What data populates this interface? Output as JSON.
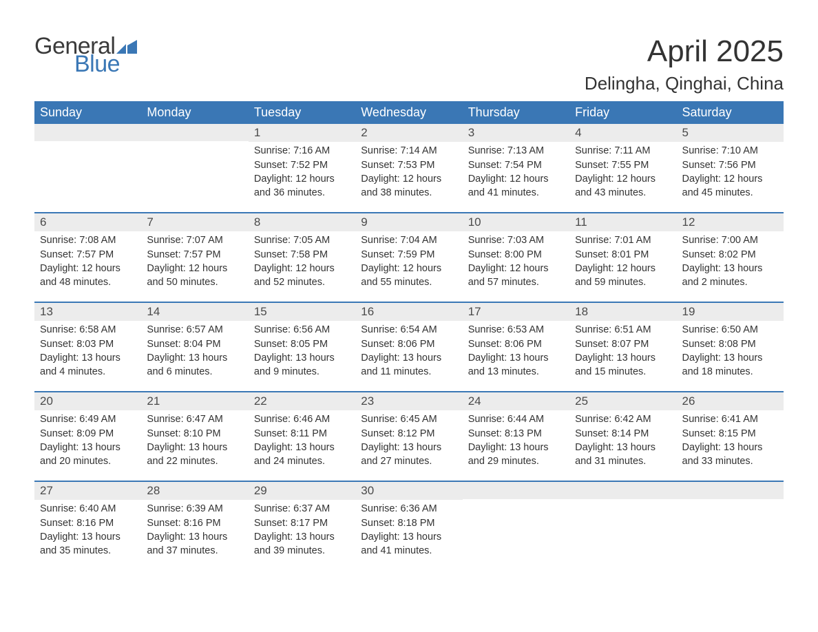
{
  "brand": {
    "word1": "General",
    "word2": "Blue",
    "flag_color": "#3a77b5",
    "text_gray": "#3a3a3a"
  },
  "title": "April 2025",
  "location": "Delingha, Qinghai, China",
  "colors": {
    "header_bg": "#3a77b5",
    "header_text": "#ffffff",
    "daynum_bg": "#ececec",
    "body_text": "#333333",
    "week_border": "#3a77b5",
    "page_bg": "#ffffff"
  },
  "fonts": {
    "title_size": 44,
    "location_size": 26,
    "dow_size": 18,
    "daynum_size": 17,
    "body_size": 14.5
  },
  "days_of_week": [
    "Sunday",
    "Monday",
    "Tuesday",
    "Wednesday",
    "Thursday",
    "Friday",
    "Saturday"
  ],
  "weeks": [
    [
      {
        "n": "",
        "sunrise": "",
        "sunset": "",
        "daylight": ""
      },
      {
        "n": "",
        "sunrise": "",
        "sunset": "",
        "daylight": ""
      },
      {
        "n": "1",
        "sunrise": "Sunrise: 7:16 AM",
        "sunset": "Sunset: 7:52 PM",
        "daylight": "Daylight: 12 hours and 36 minutes."
      },
      {
        "n": "2",
        "sunrise": "Sunrise: 7:14 AM",
        "sunset": "Sunset: 7:53 PM",
        "daylight": "Daylight: 12 hours and 38 minutes."
      },
      {
        "n": "3",
        "sunrise": "Sunrise: 7:13 AM",
        "sunset": "Sunset: 7:54 PM",
        "daylight": "Daylight: 12 hours and 41 minutes."
      },
      {
        "n": "4",
        "sunrise": "Sunrise: 7:11 AM",
        "sunset": "Sunset: 7:55 PM",
        "daylight": "Daylight: 12 hours and 43 minutes."
      },
      {
        "n": "5",
        "sunrise": "Sunrise: 7:10 AM",
        "sunset": "Sunset: 7:56 PM",
        "daylight": "Daylight: 12 hours and 45 minutes."
      }
    ],
    [
      {
        "n": "6",
        "sunrise": "Sunrise: 7:08 AM",
        "sunset": "Sunset: 7:57 PM",
        "daylight": "Daylight: 12 hours and 48 minutes."
      },
      {
        "n": "7",
        "sunrise": "Sunrise: 7:07 AM",
        "sunset": "Sunset: 7:57 PM",
        "daylight": "Daylight: 12 hours and 50 minutes."
      },
      {
        "n": "8",
        "sunrise": "Sunrise: 7:05 AM",
        "sunset": "Sunset: 7:58 PM",
        "daylight": "Daylight: 12 hours and 52 minutes."
      },
      {
        "n": "9",
        "sunrise": "Sunrise: 7:04 AM",
        "sunset": "Sunset: 7:59 PM",
        "daylight": "Daylight: 12 hours and 55 minutes."
      },
      {
        "n": "10",
        "sunrise": "Sunrise: 7:03 AM",
        "sunset": "Sunset: 8:00 PM",
        "daylight": "Daylight: 12 hours and 57 minutes."
      },
      {
        "n": "11",
        "sunrise": "Sunrise: 7:01 AM",
        "sunset": "Sunset: 8:01 PM",
        "daylight": "Daylight: 12 hours and 59 minutes."
      },
      {
        "n": "12",
        "sunrise": "Sunrise: 7:00 AM",
        "sunset": "Sunset: 8:02 PM",
        "daylight": "Daylight: 13 hours and 2 minutes."
      }
    ],
    [
      {
        "n": "13",
        "sunrise": "Sunrise: 6:58 AM",
        "sunset": "Sunset: 8:03 PM",
        "daylight": "Daylight: 13 hours and 4 minutes."
      },
      {
        "n": "14",
        "sunrise": "Sunrise: 6:57 AM",
        "sunset": "Sunset: 8:04 PM",
        "daylight": "Daylight: 13 hours and 6 minutes."
      },
      {
        "n": "15",
        "sunrise": "Sunrise: 6:56 AM",
        "sunset": "Sunset: 8:05 PM",
        "daylight": "Daylight: 13 hours and 9 minutes."
      },
      {
        "n": "16",
        "sunrise": "Sunrise: 6:54 AM",
        "sunset": "Sunset: 8:06 PM",
        "daylight": "Daylight: 13 hours and 11 minutes."
      },
      {
        "n": "17",
        "sunrise": "Sunrise: 6:53 AM",
        "sunset": "Sunset: 8:06 PM",
        "daylight": "Daylight: 13 hours and 13 minutes."
      },
      {
        "n": "18",
        "sunrise": "Sunrise: 6:51 AM",
        "sunset": "Sunset: 8:07 PM",
        "daylight": "Daylight: 13 hours and 15 minutes."
      },
      {
        "n": "19",
        "sunrise": "Sunrise: 6:50 AM",
        "sunset": "Sunset: 8:08 PM",
        "daylight": "Daylight: 13 hours and 18 minutes."
      }
    ],
    [
      {
        "n": "20",
        "sunrise": "Sunrise: 6:49 AM",
        "sunset": "Sunset: 8:09 PM",
        "daylight": "Daylight: 13 hours and 20 minutes."
      },
      {
        "n": "21",
        "sunrise": "Sunrise: 6:47 AM",
        "sunset": "Sunset: 8:10 PM",
        "daylight": "Daylight: 13 hours and 22 minutes."
      },
      {
        "n": "22",
        "sunrise": "Sunrise: 6:46 AM",
        "sunset": "Sunset: 8:11 PM",
        "daylight": "Daylight: 13 hours and 24 minutes."
      },
      {
        "n": "23",
        "sunrise": "Sunrise: 6:45 AM",
        "sunset": "Sunset: 8:12 PM",
        "daylight": "Daylight: 13 hours and 27 minutes."
      },
      {
        "n": "24",
        "sunrise": "Sunrise: 6:44 AM",
        "sunset": "Sunset: 8:13 PM",
        "daylight": "Daylight: 13 hours and 29 minutes."
      },
      {
        "n": "25",
        "sunrise": "Sunrise: 6:42 AM",
        "sunset": "Sunset: 8:14 PM",
        "daylight": "Daylight: 13 hours and 31 minutes."
      },
      {
        "n": "26",
        "sunrise": "Sunrise: 6:41 AM",
        "sunset": "Sunset: 8:15 PM",
        "daylight": "Daylight: 13 hours and 33 minutes."
      }
    ],
    [
      {
        "n": "27",
        "sunrise": "Sunrise: 6:40 AM",
        "sunset": "Sunset: 8:16 PM",
        "daylight": "Daylight: 13 hours and 35 minutes."
      },
      {
        "n": "28",
        "sunrise": "Sunrise: 6:39 AM",
        "sunset": "Sunset: 8:16 PM",
        "daylight": "Daylight: 13 hours and 37 minutes."
      },
      {
        "n": "29",
        "sunrise": "Sunrise: 6:37 AM",
        "sunset": "Sunset: 8:17 PM",
        "daylight": "Daylight: 13 hours and 39 minutes."
      },
      {
        "n": "30",
        "sunrise": "Sunrise: 6:36 AM",
        "sunset": "Sunset: 8:18 PM",
        "daylight": "Daylight: 13 hours and 41 minutes."
      },
      {
        "n": "",
        "sunrise": "",
        "sunset": "",
        "daylight": ""
      },
      {
        "n": "",
        "sunrise": "",
        "sunset": "",
        "daylight": ""
      },
      {
        "n": "",
        "sunrise": "",
        "sunset": "",
        "daylight": ""
      }
    ]
  ]
}
